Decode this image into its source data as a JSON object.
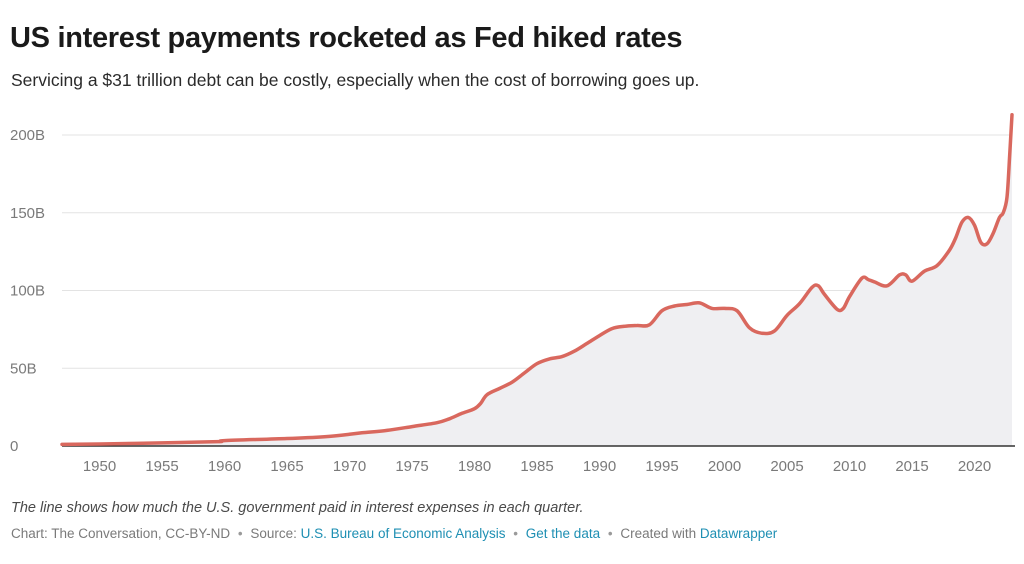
{
  "header": {
    "title": "US interest payments rocketed as Fed hiked rates",
    "subtitle": "Servicing a $31 trillion debt can be costly, especially when the cost of borrowing goes up."
  },
  "note": "The line shows how much the U.S. government paid in interest expenses in each quarter.",
  "footer": {
    "chart_credit": "Chart: The Conversation, CC-BY-ND",
    "source_label": "Source:",
    "source_link": "U.S. Bureau of Economic Analysis",
    "data_link": "Get the data",
    "created_with_label": "Created with",
    "created_with_link": "Datawrapper",
    "separator": "•"
  },
  "colors": {
    "line": "#d9685e",
    "area": "#efeff2",
    "grid": "#e3e3e3",
    "axis": "#333333",
    "tick_text": "#7a7a7a",
    "link": "#1e8fb3"
  },
  "chart_data": {
    "type": "area",
    "title": "US interest payments rocketed as Fed hiked rates",
    "subtitle": "Servicing a $31 trillion debt can be costly, especially when the cost of borrowing goes up.",
    "xlabel": "",
    "ylabel": "",
    "xlim": [
      1947,
      2023
    ],
    "ylim": [
      0,
      200
    ],
    "grid": "horizontal",
    "legend": "none",
    "x_ticks": [
      1950,
      1955,
      1960,
      1965,
      1970,
      1975,
      1980,
      1985,
      1990,
      1995,
      2000,
      2005,
      2010,
      2015,
      2020
    ],
    "y_ticks": [
      {
        "value": 0,
        "label": "0"
      },
      {
        "value": 50,
        "label": "50B"
      },
      {
        "value": 100,
        "label": "100B"
      },
      {
        "value": 150,
        "label": "150B"
      },
      {
        "value": 200,
        "label": "200B"
      }
    ],
    "series": [
      {
        "x": [
          1947,
          1950,
          1955,
          1959.5,
          1960,
          1965,
          1968,
          1970,
          1971,
          1973,
          1975,
          1977,
          1978,
          1979,
          1980,
          1980.5,
          1981,
          1982,
          1983,
          1984,
          1985,
          1986,
          1987,
          1988,
          1989,
          1990,
          1991,
          1992,
          1993,
          1994,
          1995,
          1996,
          1997,
          1998,
          1999,
          2000,
          2001,
          2002,
          2003,
          2004,
          2005,
          2006,
          2007,
          2007.5,
          2008,
          2009,
          2009.5,
          2010,
          2011,
          2011.5,
          2012,
          2013,
          2014,
          2014.5,
          2015,
          2016,
          2017,
          2018,
          2018.5,
          2019,
          2019.5,
          2020,
          2020.5,
          2021,
          2021.5,
          2022,
          2022.3,
          2022.6,
          2022.8,
          2023
        ],
        "values": [
          1,
          1.3,
          2,
          2.8,
          3.5,
          4.8,
          6,
          7.5,
          8.5,
          10,
          12.5,
          15,
          17.5,
          21,
          24,
          27.5,
          33,
          37,
          41,
          47,
          53,
          56,
          57.5,
          61,
          66,
          71,
          75.5,
          77,
          77.5,
          78,
          87,
          90,
          91,
          92,
          88.5,
          88.5,
          87,
          76,
          72.5,
          74,
          84,
          91.5,
          102,
          103,
          97.5,
          88,
          88.5,
          96,
          108,
          107,
          105.5,
          103,
          110,
          110,
          106,
          112.5,
          116,
          126,
          134,
          144,
          147,
          142,
          131,
          130,
          137,
          147,
          150,
          160,
          185,
          213
        ]
      }
    ]
  }
}
